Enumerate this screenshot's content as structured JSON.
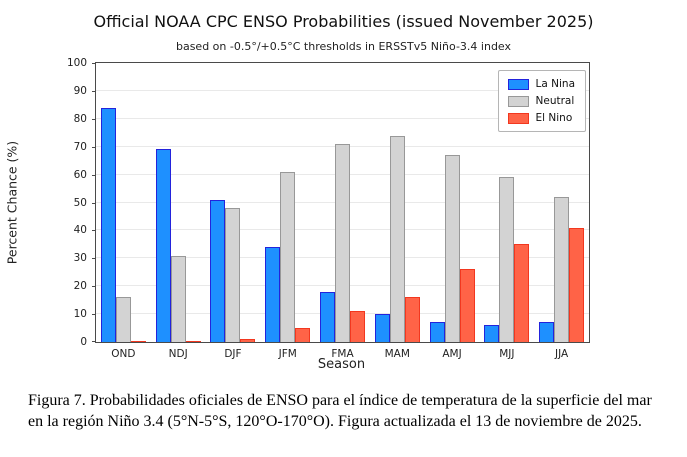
{
  "chart_data": {
    "type": "bar",
    "title": "Official NOAA CPC ENSO Probabilities (issued November 2025)",
    "subtitle": "based on -0.5°/+0.5°C thresholds in ERSSTv5 Niño-3.4 index",
    "xlabel": "Season",
    "ylabel": "Percent Chance (%)",
    "ylim": [
      0,
      100
    ],
    "ytick_step": 10,
    "grid": "horizontal",
    "legend_position": "upper right",
    "categories": [
      "OND",
      "NDJ",
      "DJF",
      "JFM",
      "FMA",
      "MAM",
      "AMJ",
      "MJJ",
      "JJA"
    ],
    "series": [
      {
        "name": "La Nina",
        "color": "#1E90FF",
        "edge_color": "#2323DC",
        "values": [
          84,
          69,
          51,
          34,
          18,
          10,
          7,
          6,
          7
        ]
      },
      {
        "name": "Neutral",
        "color": "#D3D3D3",
        "edge_color": "#989898",
        "values": [
          16,
          31,
          48,
          61,
          71,
          74,
          67,
          59,
          52
        ]
      },
      {
        "name": "El Nino",
        "color": "#FF6347",
        "edge_color": "#F2371F",
        "values": [
          0,
          0,
          1,
          5,
          11,
          16,
          26,
          35,
          41
        ]
      }
    ]
  },
  "caption": {
    "lines": [
      "Figura 7. Probabilidades oficiales de ENSO para el índice de temperatura de la superficie del mar",
      "en la región Niño 3.4 (5°N-5°S, 120°O-170°O). Figura actualizada el 13 de noviembre de 2025."
    ]
  }
}
